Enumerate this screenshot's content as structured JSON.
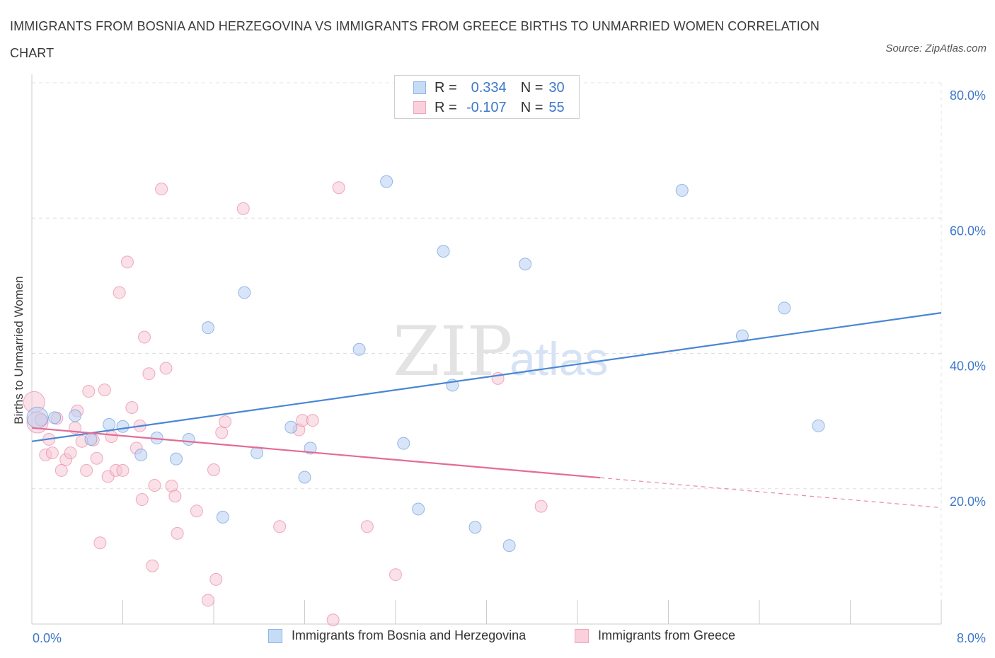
{
  "title": "IMMIGRANTS FROM BOSNIA AND HERZEGOVINA VS IMMIGRANTS FROM GREECE BIRTHS TO UNMARRIED WOMEN CORRELATION CHART",
  "source": "Source: ZipAtlas.com",
  "watermark": {
    "zip": "ZIP",
    "atlas": "atlas"
  },
  "legend": {
    "r_label": "R =",
    "n_label": "N =",
    "rows": [
      {
        "r": "0.334",
        "n": "30",
        "color": "#8fb4e8"
      },
      {
        "r": "-0.107",
        "n": "55",
        "color": "#f0a6bd"
      }
    ]
  },
  "bottom_legend": {
    "items": [
      {
        "label": "Immigrants from Bosnia and Herzegovina",
        "color": "#8fb4e8"
      },
      {
        "label": "Immigrants from Greece",
        "color": "#f0a6bd"
      }
    ]
  },
  "chart_data": {
    "type": "scatter",
    "title": "IMMIGRANTS FROM BOSNIA AND HERZEGOVINA VS IMMIGRANTS FROM GREECE BIRTHS TO UNMARRIED WOMEN CORRELATION CHART",
    "xlabel": "",
    "ylabel": "Births to Unmarried Women",
    "xlim": [
      0,
      8
    ],
    "ylim": [
      0,
      80
    ],
    "x_tick_labels": [
      "0.0%",
      "8.0%"
    ],
    "y_tick_values": [
      20,
      40,
      60,
      80
    ],
    "y_tick_labels": [
      "20.0%",
      "40.0%",
      "60.0%",
      "80.0%"
    ],
    "grid": true,
    "legend_position": "top-center",
    "series": [
      {
        "name": "Immigrants from Bosnia and Herzegovina",
        "color": "#4a86d4",
        "fill": "#b8d0f2",
        "r": 0.334,
        "n": 30,
        "trend": {
          "x0": 0.0,
          "y0": 27.0,
          "x1": 8.0,
          "y1": 46.0,
          "solid_until": 8.0
        },
        "points": [
          [
            0.05,
            30.5
          ],
          [
            0.2,
            30.5
          ],
          [
            0.38,
            30.8
          ],
          [
            0.52,
            27.3
          ],
          [
            0.68,
            29.5
          ],
          [
            0.8,
            29.2
          ],
          [
            0.96,
            25.0
          ],
          [
            1.1,
            27.5
          ],
          [
            1.27,
            24.4
          ],
          [
            1.38,
            27.3
          ],
          [
            1.55,
            43.8
          ],
          [
            1.68,
            15.8
          ],
          [
            1.87,
            49.0
          ],
          [
            1.98,
            25.3
          ],
          [
            2.28,
            29.1
          ],
          [
            2.4,
            21.7
          ],
          [
            2.45,
            26.0
          ],
          [
            2.88,
            40.6
          ],
          [
            3.12,
            65.4
          ],
          [
            3.27,
            26.7
          ],
          [
            3.4,
            17.0
          ],
          [
            3.62,
            55.1
          ],
          [
            3.7,
            35.3
          ],
          [
            3.9,
            14.3
          ],
          [
            4.2,
            11.6
          ],
          [
            4.34,
            53.2
          ],
          [
            5.72,
            64.1
          ],
          [
            6.25,
            42.6
          ],
          [
            6.62,
            46.7
          ],
          [
            6.92,
            29.3
          ]
        ]
      },
      {
        "name": "Immigrants from Greece",
        "color": "#e56b95",
        "fill": "#f6c6d4",
        "r": -0.107,
        "n": 55,
        "trend": {
          "x0": 0.0,
          "y0": 29.0,
          "x1": 8.0,
          "y1": 17.2,
          "solid_until": 5.0
        },
        "points": [
          [
            0.02,
            32.8
          ],
          [
            0.05,
            29.8
          ],
          [
            0.08,
            30.2
          ],
          [
            0.12,
            25.0
          ],
          [
            0.15,
            27.3
          ],
          [
            0.18,
            25.3
          ],
          [
            0.22,
            30.4
          ],
          [
            0.26,
            22.7
          ],
          [
            0.3,
            24.3
          ],
          [
            0.34,
            25.3
          ],
          [
            0.38,
            29.0
          ],
          [
            0.4,
            31.5
          ],
          [
            0.44,
            27.0
          ],
          [
            0.48,
            22.7
          ],
          [
            0.5,
            34.4
          ],
          [
            0.54,
            27.2
          ],
          [
            0.57,
            24.5
          ],
          [
            0.6,
            12.0
          ],
          [
            0.64,
            34.6
          ],
          [
            0.67,
            21.8
          ],
          [
            0.7,
            27.7
          ],
          [
            0.74,
            22.7
          ],
          [
            0.77,
            49.0
          ],
          [
            0.8,
            22.7
          ],
          [
            0.84,
            53.5
          ],
          [
            0.88,
            32.0
          ],
          [
            0.92,
            26.0
          ],
          [
            0.95,
            29.3
          ],
          [
            0.97,
            18.4
          ],
          [
            0.99,
            42.4
          ],
          [
            1.03,
            37.0
          ],
          [
            1.06,
            8.6
          ],
          [
            1.08,
            20.5
          ],
          [
            1.14,
            64.3
          ],
          [
            1.18,
            37.8
          ],
          [
            1.23,
            20.4
          ],
          [
            1.26,
            18.9
          ],
          [
            1.28,
            13.4
          ],
          [
            1.45,
            16.7
          ],
          [
            1.55,
            3.5
          ],
          [
            1.6,
            22.8
          ],
          [
            1.62,
            6.6
          ],
          [
            1.67,
            28.3
          ],
          [
            1.7,
            29.9
          ],
          [
            1.86,
            61.4
          ],
          [
            2.18,
            14.4
          ],
          [
            2.35,
            28.7
          ],
          [
            2.38,
            30.1
          ],
          [
            2.47,
            30.1
          ],
          [
            2.65,
            0.6
          ],
          [
            2.7,
            64.5
          ],
          [
            2.95,
            14.4
          ],
          [
            3.2,
            7.3
          ],
          [
            4.1,
            36.3
          ],
          [
            4.48,
            17.4
          ]
        ]
      }
    ]
  }
}
